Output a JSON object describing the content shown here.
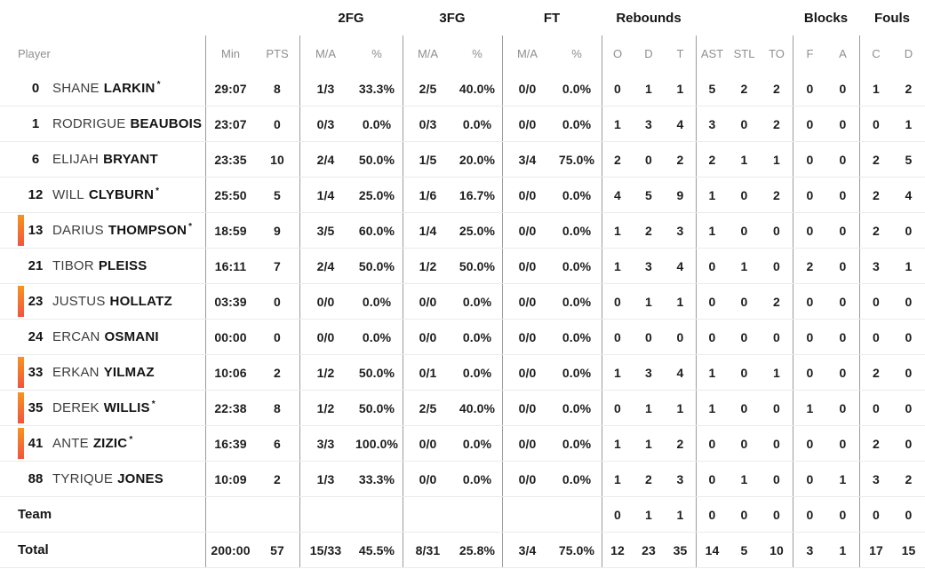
{
  "header": {
    "groups": {
      "fg2": "2FG",
      "fg3": "3FG",
      "ft": "FT",
      "rebounds": "Rebounds",
      "blocks": "Blocks",
      "fouls": "Fouls"
    },
    "columns": [
      "Player",
      "Min",
      "PTS",
      "M/A",
      "%",
      "M/A",
      "%",
      "M/A",
      "%",
      "O",
      "D",
      "T",
      "AST",
      "STL",
      "TO",
      "F",
      "A",
      "C",
      "D"
    ]
  },
  "starter_mark": "*",
  "colors": {
    "on_court_top": "#F7941E",
    "on_court_bottom": "#F2543F"
  },
  "players": [
    {
      "number": "0",
      "first": "SHANE",
      "last": "LARKIN",
      "starter": true,
      "on_court": false,
      "stats": [
        "29:07",
        "8",
        "1/3",
        "33.3%",
        "2/5",
        "40.0%",
        "0/0",
        "0.0%",
        "0",
        "1",
        "1",
        "5",
        "2",
        "2",
        "0",
        "0",
        "1",
        "2"
      ]
    },
    {
      "number": "1",
      "first": "RODRIGUE",
      "last": "BEAUBOIS",
      "starter": false,
      "on_court": false,
      "stats": [
        "23:07",
        "0",
        "0/3",
        "0.0%",
        "0/3",
        "0.0%",
        "0/0",
        "0.0%",
        "1",
        "3",
        "4",
        "3",
        "0",
        "2",
        "0",
        "0",
        "0",
        "1"
      ]
    },
    {
      "number": "6",
      "first": "ELIJAH",
      "last": "BRYANT",
      "starter": false,
      "on_court": false,
      "stats": [
        "23:35",
        "10",
        "2/4",
        "50.0%",
        "1/5",
        "20.0%",
        "3/4",
        "75.0%",
        "2",
        "0",
        "2",
        "2",
        "1",
        "1",
        "0",
        "0",
        "2",
        "5"
      ]
    },
    {
      "number": "12",
      "first": "WILL",
      "last": "CLYBURN",
      "starter": true,
      "on_court": false,
      "stats": [
        "25:50",
        "5",
        "1/4",
        "25.0%",
        "1/6",
        "16.7%",
        "0/0",
        "0.0%",
        "4",
        "5",
        "9",
        "1",
        "0",
        "2",
        "0",
        "0",
        "2",
        "4"
      ]
    },
    {
      "number": "13",
      "first": "DARIUS",
      "last": "THOMPSON",
      "starter": true,
      "on_court": true,
      "stats": [
        "18:59",
        "9",
        "3/5",
        "60.0%",
        "1/4",
        "25.0%",
        "0/0",
        "0.0%",
        "1",
        "2",
        "3",
        "1",
        "0",
        "0",
        "0",
        "0",
        "2",
        "0"
      ]
    },
    {
      "number": "21",
      "first": "TIBOR",
      "last": "PLEISS",
      "starter": false,
      "on_court": false,
      "stats": [
        "16:11",
        "7",
        "2/4",
        "50.0%",
        "1/2",
        "50.0%",
        "0/0",
        "0.0%",
        "1",
        "3",
        "4",
        "0",
        "1",
        "0",
        "2",
        "0",
        "3",
        "1"
      ]
    },
    {
      "number": "23",
      "first": "JUSTUS",
      "last": "HOLLATZ",
      "starter": false,
      "on_court": true,
      "stats": [
        "03:39",
        "0",
        "0/0",
        "0.0%",
        "0/0",
        "0.0%",
        "0/0",
        "0.0%",
        "0",
        "1",
        "1",
        "0",
        "0",
        "2",
        "0",
        "0",
        "0",
        "0"
      ]
    },
    {
      "number": "24",
      "first": "ERCAN",
      "last": "OSMANI",
      "starter": false,
      "on_court": false,
      "stats": [
        "00:00",
        "0",
        "0/0",
        "0.0%",
        "0/0",
        "0.0%",
        "0/0",
        "0.0%",
        "0",
        "0",
        "0",
        "0",
        "0",
        "0",
        "0",
        "0",
        "0",
        "0"
      ]
    },
    {
      "number": "33",
      "first": "ERKAN",
      "last": "YILMAZ",
      "starter": false,
      "on_court": true,
      "stats": [
        "10:06",
        "2",
        "1/2",
        "50.0%",
        "0/1",
        "0.0%",
        "0/0",
        "0.0%",
        "1",
        "3",
        "4",
        "1",
        "0",
        "1",
        "0",
        "0",
        "2",
        "0"
      ]
    },
    {
      "number": "35",
      "first": "DEREK",
      "last": "WILLIS",
      "starter": true,
      "on_court": true,
      "stats": [
        "22:38",
        "8",
        "1/2",
        "50.0%",
        "2/5",
        "40.0%",
        "0/0",
        "0.0%",
        "0",
        "1",
        "1",
        "1",
        "0",
        "0",
        "1",
        "0",
        "0",
        "0"
      ]
    },
    {
      "number": "41",
      "first": "ANTE",
      "last": "ZIZIC",
      "starter": true,
      "on_court": true,
      "stats": [
        "16:39",
        "6",
        "3/3",
        "100.0%",
        "0/0",
        "0.0%",
        "0/0",
        "0.0%",
        "1",
        "1",
        "2",
        "0",
        "0",
        "0",
        "0",
        "0",
        "2",
        "0"
      ]
    },
    {
      "number": "88",
      "first": "TYRIQUE",
      "last": "JONES",
      "starter": false,
      "on_court": false,
      "stats": [
        "10:09",
        "2",
        "1/3",
        "33.3%",
        "0/0",
        "0.0%",
        "0/0",
        "0.0%",
        "1",
        "2",
        "3",
        "0",
        "1",
        "0",
        "0",
        "1",
        "3",
        "2"
      ]
    }
  ],
  "team_row": {
    "label": "Team",
    "stats": [
      "",
      "",
      "",
      "",
      "",
      "",
      "",
      "",
      "0",
      "1",
      "1",
      "0",
      "0",
      "0",
      "0",
      "0",
      "0",
      "0"
    ]
  },
  "total_row": {
    "label": "Total",
    "stats": [
      "200:00",
      "57",
      "15/33",
      "45.5%",
      "8/31",
      "25.8%",
      "3/4",
      "75.0%",
      "12",
      "23",
      "35",
      "14",
      "5",
      "10",
      "3",
      "1",
      "17",
      "15"
    ]
  }
}
